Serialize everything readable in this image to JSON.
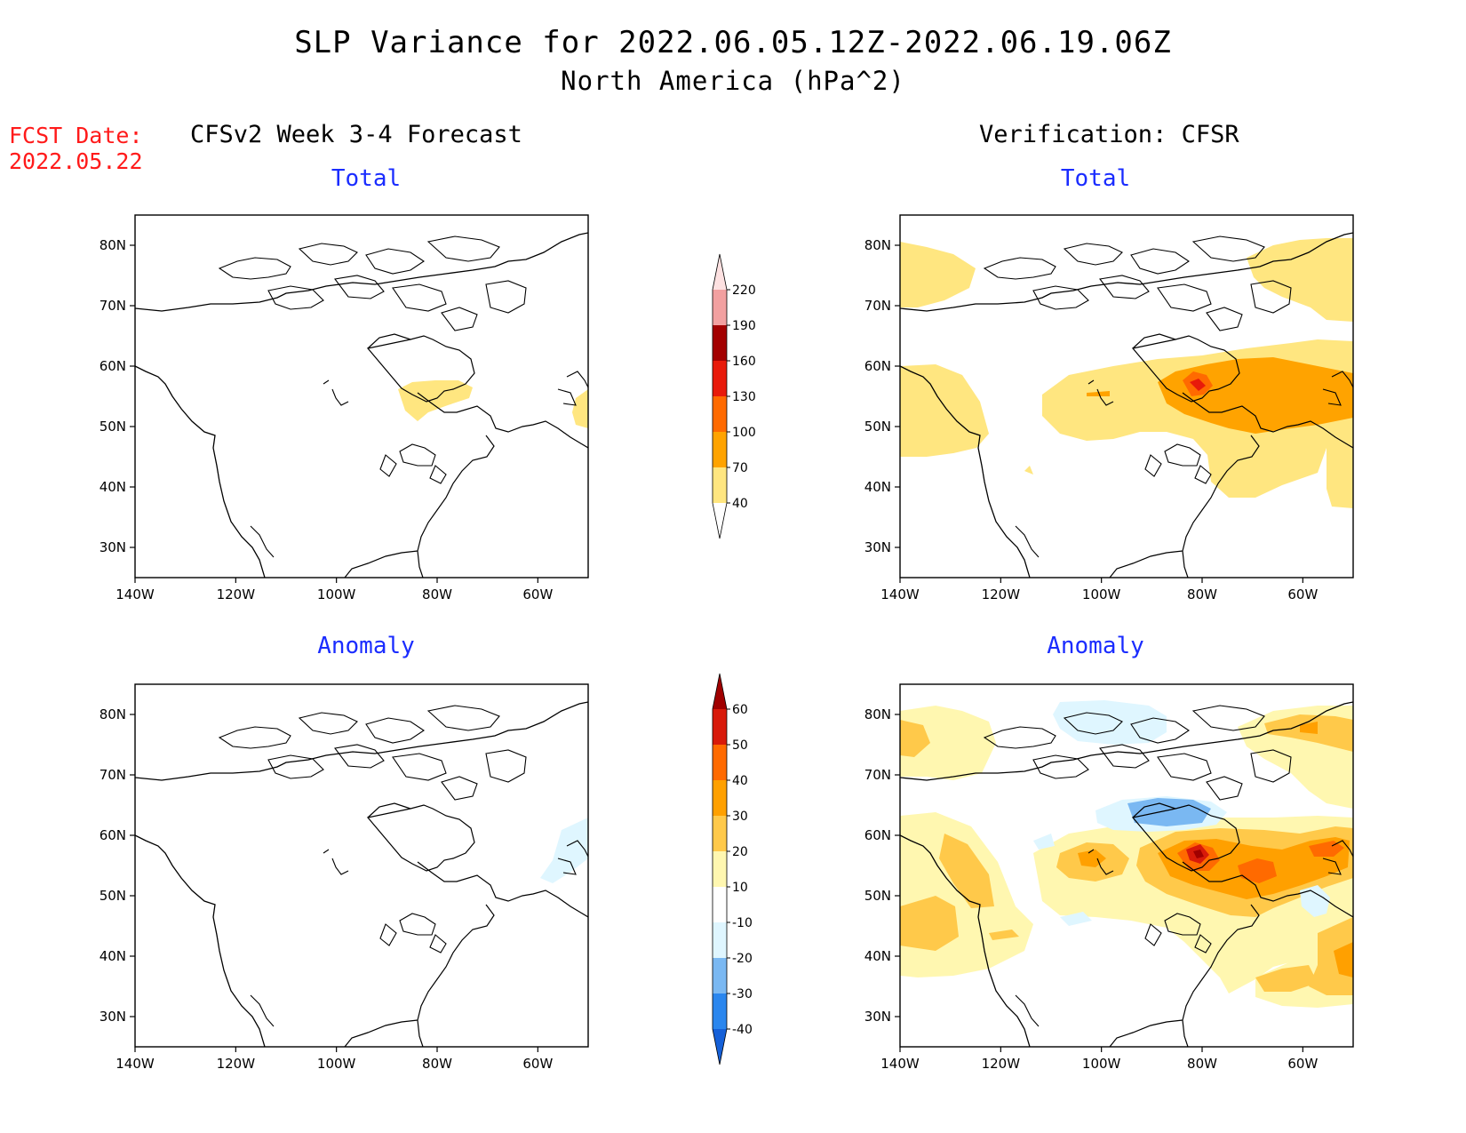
{
  "header": {
    "title": "SLP Variance for 2022.06.05.12Z-2022.06.19.06Z",
    "subtitle": "North America (hPa^2)",
    "fcst_label": "FCST Date:",
    "fcst_date": "2022.05.22"
  },
  "columns": {
    "left_title": "CFSv2 Week 3-4 Forecast",
    "right_title": "Verification: CFSR"
  },
  "panels": {
    "top_left_title": "Total",
    "top_right_title": "Total",
    "bottom_left_title": "Anomaly",
    "bottom_right_title": "Anomaly"
  },
  "axes": {
    "lat_labels": [
      "80N",
      "70N",
      "60N",
      "50N",
      "40N",
      "30N"
    ],
    "lon_labels": [
      "140W",
      "120W",
      "100W",
      "80W",
      "60W"
    ]
  },
  "colorbars": {
    "total": {
      "levels": [
        "40",
        "70",
        "100",
        "130",
        "160",
        "190",
        "220"
      ],
      "colors": [
        "#ffe680",
        "#ffa300",
        "#ff6a00",
        "#e81a0a",
        "#a30000",
        "#f2a0a0",
        "#fde1e1"
      ]
    },
    "anomaly": {
      "levels": [
        "-40",
        "-30",
        "-20",
        "-10",
        "10",
        "20",
        "30",
        "40",
        "50",
        "60"
      ],
      "colors": [
        "#1560d8",
        "#2a86ee",
        "#7ab8f2",
        "#dff6ff",
        "#ffffff",
        "#fff7b0",
        "#ffc94a",
        "#ffa000",
        "#ff6a00",
        "#d81a0a",
        "#a00000"
      ]
    }
  }
}
